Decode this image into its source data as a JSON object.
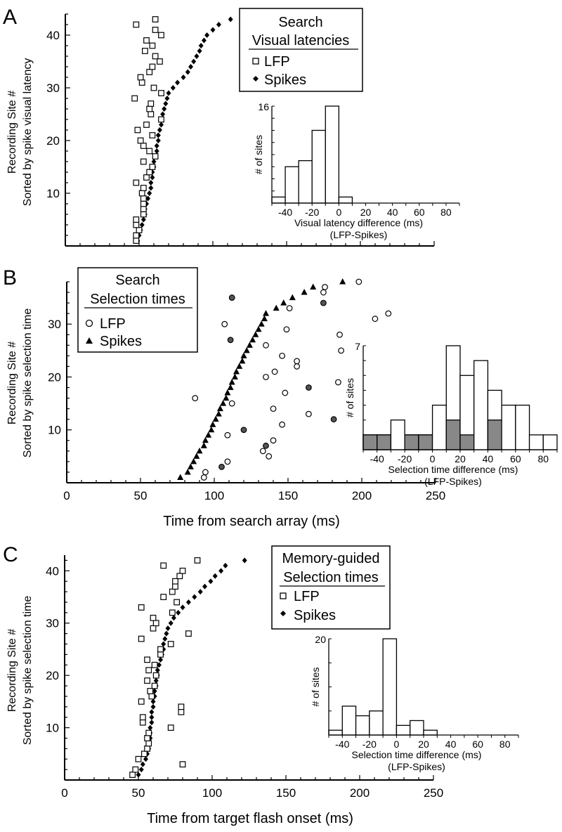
{
  "panels": [
    {
      "letter": "A",
      "ylabel_line1": "Recording Site #",
      "ylabel_line2": "Sorted by spike visual latency",
      "xlabel": "",
      "show_xticks": false,
      "xlim": [
        0,
        250
      ],
      "ylim": [
        0,
        44
      ],
      "yticks": [
        10,
        20,
        30,
        40
      ],
      "xticks": [],
      "legend": {
        "title": "Search",
        "subtitle": "Visual latencies",
        "lfp": "LFP",
        "spikes": "Spikes",
        "lfp_marker": "square",
        "spikes_marker": "diamond"
      },
      "spikes": [
        [
          49,
          1
        ],
        [
          50,
          2
        ],
        [
          51,
          3
        ],
        [
          52,
          4
        ],
        [
          53,
          5
        ],
        [
          54,
          6
        ],
        [
          54,
          7
        ],
        [
          55,
          8
        ],
        [
          56,
          9
        ],
        [
          57,
          10
        ],
        [
          58,
          11
        ],
        [
          58,
          12
        ],
        [
          59,
          13
        ],
        [
          59,
          14
        ],
        [
          60,
          15
        ],
        [
          60,
          16
        ],
        [
          61,
          17
        ],
        [
          62,
          18
        ],
        [
          62,
          19
        ],
        [
          63,
          20
        ],
        [
          63,
          21
        ],
        [
          64,
          22
        ],
        [
          65,
          23
        ],
        [
          65,
          24
        ],
        [
          66,
          25
        ],
        [
          67,
          26
        ],
        [
          68,
          27
        ],
        [
          69,
          28
        ],
        [
          70,
          29
        ],
        [
          73,
          30
        ],
        [
          76,
          31
        ],
        [
          80,
          32
        ],
        [
          83,
          33
        ],
        [
          85,
          34
        ],
        [
          87,
          35
        ],
        [
          89,
          36
        ],
        [
          91,
          37
        ],
        [
          92,
          38
        ],
        [
          94,
          39
        ],
        [
          96,
          40
        ],
        [
          100,
          41
        ],
        [
          104,
          42
        ],
        [
          112,
          43
        ]
      ],
      "lfp": [
        [
          48,
          1
        ],
        [
          48,
          2
        ],
        [
          50,
          3
        ],
        [
          48,
          4
        ],
        [
          48,
          5
        ],
        [
          53,
          6
        ],
        [
          53,
          7
        ],
        [
          53,
          8
        ],
        [
          53,
          9
        ],
        [
          52,
          10
        ],
        [
          53,
          11
        ],
        [
          48,
          12
        ],
        [
          55,
          13
        ],
        [
          57,
          14
        ],
        [
          59,
          15
        ],
        [
          53,
          16
        ],
        [
          61,
          17
        ],
        [
          57,
          18
        ],
        [
          53,
          19
        ],
        [
          51,
          20
        ],
        [
          59,
          21
        ],
        [
          49,
          22
        ],
        [
          55,
          23
        ],
        [
          65,
          24
        ],
        [
          58,
          25
        ],
        [
          57,
          26
        ],
        [
          58,
          27
        ],
        [
          47,
          28
        ],
        [
          65,
          29
        ],
        [
          60,
          30
        ],
        [
          52,
          31
        ],
        [
          51,
          32
        ],
        [
          57,
          33
        ],
        [
          59,
          34
        ],
        [
          64,
          35
        ],
        [
          61,
          36
        ],
        [
          54,
          37
        ],
        [
          59,
          38
        ],
        [
          55,
          39
        ],
        [
          65,
          40
        ],
        [
          61,
          41
        ],
        [
          48,
          42
        ],
        [
          61,
          43
        ]
      ]
    },
    {
      "letter": "B",
      "ylabel_line1": "Recording Site #",
      "ylabel_line2": "Sorted by spike selection time",
      "xlabel": "Time from search array (ms)",
      "show_xticks": true,
      "xlim": [
        0,
        250
      ],
      "ylim": [
        0,
        38
      ],
      "yticks": [
        10,
        20,
        30
      ],
      "xticks": [
        0,
        50,
        100,
        150,
        200,
        250
      ],
      "legend": {
        "title": "Search",
        "subtitle": "Selection times",
        "lfp": "LFP",
        "spikes": "Spikes",
        "lfp_marker": "circle",
        "spikes_marker": "triangle"
      },
      "spikes": [
        [
          77,
          1
        ],
        [
          82,
          2
        ],
        [
          84,
          3
        ],
        [
          86,
          4
        ],
        [
          88,
          5
        ],
        [
          90,
          6
        ],
        [
          93,
          7
        ],
        [
          94,
          8
        ],
        [
          96,
          9
        ],
        [
          98,
          10
        ],
        [
          99,
          11
        ],
        [
          101,
          12
        ],
        [
          103,
          13
        ],
        [
          104,
          14
        ],
        [
          106,
          15
        ],
        [
          108,
          16
        ],
        [
          109,
          17
        ],
        [
          111,
          18
        ],
        [
          112,
          19
        ],
        [
          114,
          20
        ],
        [
          115,
          21
        ],
        [
          117,
          22
        ],
        [
          119,
          23
        ],
        [
          120,
          24
        ],
        [
          122,
          25
        ],
        [
          124,
          26
        ],
        [
          126,
          27
        ],
        [
          128,
          28
        ],
        [
          130,
          29
        ],
        [
          132,
          30
        ],
        [
          134,
          31
        ],
        [
          135,
          32
        ],
        [
          142,
          33
        ],
        [
          147,
          34
        ],
        [
          153,
          35
        ],
        [
          161,
          36
        ],
        [
          167,
          37
        ],
        [
          187,
          38
        ]
      ],
      "lfp": [
        [
          93,
          1
        ],
        [
          94,
          2
        ],
        [
          105,
          3
        ],
        [
          109,
          4
        ],
        [
          137,
          5
        ],
        [
          133,
          6
        ],
        [
          135,
          7
        ],
        [
          140,
          8
        ],
        [
          109,
          9
        ],
        [
          120,
          10
        ],
        [
          146,
          11
        ],
        [
          181,
          12
        ],
        [
          164,
          13
        ],
        [
          140,
          14
        ],
        [
          112,
          15
        ],
        [
          87,
          16
        ],
        [
          148,
          17
        ],
        [
          164,
          18
        ],
        [
          184,
          19
        ],
        [
          135,
          20
        ],
        [
          141,
          21
        ],
        [
          156,
          22
        ],
        [
          156,
          23
        ],
        [
          146,
          24
        ],
        [
          186,
          25
        ],
        [
          135,
          26
        ],
        [
          111,
          27
        ],
        [
          185,
          28
        ],
        [
          149,
          29
        ],
        [
          107,
          30
        ],
        [
          209,
          31
        ],
        [
          218,
          32
        ],
        [
          151,
          33
        ],
        [
          174,
          34
        ],
        [
          112,
          35
        ],
        [
          174,
          36
        ],
        [
          175,
          37
        ],
        [
          198,
          38
        ]
      ],
      "lfp_filled": [
        3,
        7,
        10,
        12,
        18,
        27,
        34,
        35
      ]
    },
    {
      "letter": "C",
      "ylabel_line1": "Recording Site #",
      "ylabel_line2": "Sorted by spike selection time",
      "xlabel": "Time from target flash onset (ms)",
      "show_xticks": true,
      "xlim": [
        0,
        250
      ],
      "ylim": [
        0,
        43
      ],
      "yticks": [
        10,
        20,
        30,
        40
      ],
      "xticks": [
        0,
        50,
        100,
        150,
        200,
        250
      ],
      "legend": {
        "title": "Memory-guided",
        "subtitle": "Selection times",
        "lfp": "LFP",
        "spikes": "Spikes",
        "lfp_marker": "square",
        "spikes_marker": "diamond"
      },
      "spikes": [
        [
          50,
          1
        ],
        [
          52,
          2
        ],
        [
          53,
          3
        ],
        [
          55,
          4
        ],
        [
          56,
          5
        ],
        [
          57,
          6
        ],
        [
          57,
          7
        ],
        [
          58,
          8
        ],
        [
          58,
          9
        ],
        [
          58,
          10
        ],
        [
          59,
          11
        ],
        [
          59,
          12
        ],
        [
          59,
          13
        ],
        [
          60,
          14
        ],
        [
          60,
          15
        ],
        [
          61,
          16
        ],
        [
          61,
          17
        ],
        [
          62,
          18
        ],
        [
          62,
          19
        ],
        [
          63,
          20
        ],
        [
          63,
          21
        ],
        [
          64,
          22
        ],
        [
          65,
          23
        ],
        [
          66,
          24
        ],
        [
          67,
          25
        ],
        [
          67,
          26
        ],
        [
          68,
          27
        ],
        [
          69,
          28
        ],
        [
          70,
          29
        ],
        [
          72,
          30
        ],
        [
          74,
          31
        ],
        [
          77,
          32
        ],
        [
          80,
          33
        ],
        [
          84,
          34
        ],
        [
          88,
          35
        ],
        [
          92,
          36
        ],
        [
          95,
          37
        ],
        [
          99,
          38
        ],
        [
          102,
          39
        ],
        [
          106,
          40
        ],
        [
          109,
          41
        ],
        [
          122,
          42
        ]
      ],
      "lfp": [
        [
          46,
          1
        ],
        [
          48,
          2
        ],
        [
          80,
          3
        ],
        [
          50,
          4
        ],
        [
          54,
          5
        ],
        [
          56,
          6
        ],
        [
          57,
          7
        ],
        [
          56,
          8
        ],
        [
          57,
          9
        ],
        [
          72,
          10
        ],
        [
          53,
          11
        ],
        [
          53,
          12
        ],
        [
          79,
          13
        ],
        [
          79,
          14
        ],
        [
          52,
          15
        ],
        [
          59,
          16
        ],
        [
          58,
          17
        ],
        [
          61,
          18
        ],
        [
          56,
          19
        ],
        [
          62,
          20
        ],
        [
          57,
          21
        ],
        [
          61,
          22
        ],
        [
          56,
          23
        ],
        [
          65,
          24
        ],
        [
          65,
          25
        ],
        [
          72,
          26
        ],
        [
          52,
          27
        ],
        [
          84,
          28
        ],
        [
          60,
          29
        ],
        [
          62,
          30
        ],
        [
          60,
          31
        ],
        [
          73,
          32
        ],
        [
          52,
          33
        ],
        [
          76,
          34
        ],
        [
          67,
          35
        ],
        [
          73,
          36
        ],
        [
          75,
          37
        ],
        [
          75,
          38
        ],
        [
          78,
          39
        ],
        [
          80,
          40
        ],
        [
          67,
          41
        ],
        [
          90,
          42
        ]
      ]
    }
  ],
  "insets": [
    {
      "ylabel": "# of sites",
      "xlabel_line1": "Visual latency difference (ms)",
      "xlabel_line2": "(LFP-Spikes)",
      "ymax_label": "16",
      "ymax": 16,
      "xticks": [
        -40,
        -20,
        0,
        20,
        40,
        60,
        80
      ],
      "bins": [
        [
          -50,
          -40,
          1,
          0
        ],
        [
          -40,
          -30,
          6,
          0
        ],
        [
          -30,
          -20,
          7,
          0
        ],
        [
          -20,
          -10,
          12,
          0
        ],
        [
          -10,
          0,
          16,
          0
        ],
        [
          0,
          10,
          1,
          0
        ]
      ]
    },
    {
      "ylabel": "# of sites",
      "xlabel_line1": "Selection time difference (ms)",
      "xlabel_line2": "(LFP-Spikes)",
      "ymax_label": "7",
      "ymax": 7,
      "xticks": [
        -40,
        -20,
        0,
        20,
        40,
        60,
        80
      ],
      "bins": [
        [
          -50,
          -40,
          1,
          1
        ],
        [
          -40,
          -30,
          1,
          1
        ],
        [
          -30,
          -20,
          2,
          0
        ],
        [
          -20,
          -10,
          1,
          1
        ],
        [
          -10,
          0,
          1,
          1
        ],
        [
          0,
          10,
          3,
          0
        ],
        [
          10,
          20,
          7,
          2
        ],
        [
          20,
          30,
          5,
          1
        ],
        [
          30,
          40,
          6,
          0
        ],
        [
          40,
          50,
          4,
          2
        ],
        [
          50,
          60,
          3,
          0
        ],
        [
          60,
          70,
          3,
          0
        ],
        [
          70,
          80,
          1,
          0
        ],
        [
          80,
          90,
          1,
          0
        ]
      ]
    },
    {
      "ylabel": "# of sites",
      "xlabel_line1": "Selection time difference (ms)",
      "xlabel_line2": "(LFP-Spikes)",
      "ymax_label": "20",
      "ymax": 20,
      "xticks": [
        -40,
        -20,
        0,
        20,
        40,
        60,
        80
      ],
      "bins": [
        [
          -50,
          -40,
          1,
          0
        ],
        [
          -40,
          -30,
          6,
          0
        ],
        [
          -30,
          -20,
          4,
          0
        ],
        [
          -20,
          -10,
          5,
          0
        ],
        [
          -10,
          0,
          20,
          0
        ],
        [
          0,
          10,
          2,
          0
        ],
        [
          10,
          20,
          3,
          0
        ],
        [
          20,
          30,
          1,
          0
        ]
      ]
    }
  ],
  "chart_data": [
    {
      "type": "scatter",
      "title": "Search — Visual latencies",
      "ylabel": "Recording Site # Sorted by spike visual latency",
      "xlim": [
        0,
        250
      ],
      "ylim": [
        0,
        44
      ],
      "series": [
        {
          "name": "LFP",
          "source": "panels.0.lfp"
        },
        {
          "name": "Spikes",
          "source": "panels.0.spikes"
        }
      ]
    },
    {
      "type": "scatter",
      "title": "Search — Selection times",
      "xlabel": "Time from search array (ms)",
      "ylabel": "Recording Site # Sorted by spike selection time",
      "xlim": [
        0,
        250
      ],
      "ylim": [
        0,
        38
      ],
      "series": [
        {
          "name": "LFP",
          "source": "panels.1.lfp"
        },
        {
          "name": "Spikes",
          "source": "panels.1.spikes"
        }
      ]
    },
    {
      "type": "scatter",
      "title": "Memory-guided — Selection times",
      "xlabel": "Time from target flash onset (ms)",
      "ylabel": "Recording Site # Sorted by spike selection time",
      "xlim": [
        0,
        250
      ],
      "ylim": [
        0,
        43
      ],
      "series": [
        {
          "name": "LFP",
          "source": "panels.2.lfp"
        },
        {
          "name": "Spikes",
          "source": "panels.2.spikes"
        }
      ]
    },
    {
      "type": "bar",
      "xlabel": "Visual latency difference (ms) (LFP-Spikes)",
      "ylabel": "# of sites",
      "categories": [
        "-50",
        "-40",
        "-30",
        "-20",
        "-10",
        "0"
      ],
      "values": [
        1,
        6,
        7,
        12,
        16,
        1
      ]
    },
    {
      "type": "bar",
      "xlabel": "Selection time difference (ms) (LFP-Spikes)",
      "ylabel": "# of sites",
      "categories": [
        "-50",
        "-40",
        "-30",
        "-20",
        "-10",
        "0",
        "10",
        "20",
        "30",
        "40",
        "50",
        "60",
        "70",
        "80"
      ],
      "values": [
        1,
        1,
        2,
        1,
        1,
        3,
        7,
        5,
        6,
        4,
        3,
        3,
        1,
        1
      ]
    },
    {
      "type": "bar",
      "xlabel": "Selection time difference (ms) (LFP-Spikes)",
      "ylabel": "# of sites",
      "categories": [
        "-50",
        "-40",
        "-30",
        "-20",
        "-10",
        "0",
        "10",
        "20"
      ],
      "values": [
        1,
        6,
        4,
        5,
        20,
        2,
        3,
        1
      ]
    }
  ]
}
